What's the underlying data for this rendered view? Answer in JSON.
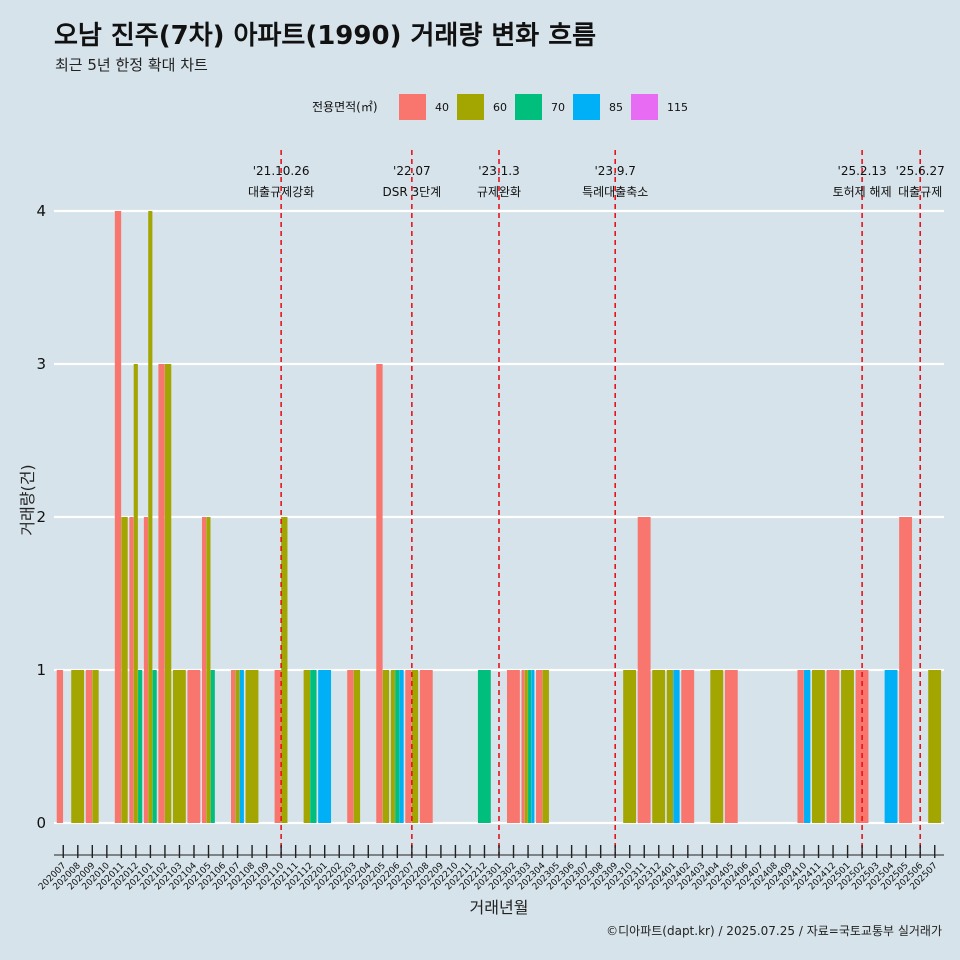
{
  "colors": {
    "background": "#d6e3ea",
    "gridline": "#ffffff",
    "event_line": "#e8141b",
    "series": {
      "40": "#f8766d",
      "60": "#a3a500",
      "70": "#00bf7d",
      "85": "#00b0f6",
      "115": "#e76bf3"
    }
  },
  "chart_data": {
    "type": "bar",
    "title": "오남 진주(7차) 아파트(1990) 거래량 변화 흐름",
    "subtitle": "최근 5년 한정 확대 차트",
    "xlabel": "거래년월",
    "ylabel": "거래량(건)",
    "ylim": [
      0,
      4
    ],
    "yticks": [
      0,
      1,
      2,
      3,
      4
    ],
    "grid": true,
    "legend": {
      "title": "전용면적(㎡)",
      "position": "top",
      "entries": [
        "40",
        "60",
        "70",
        "85",
        "115"
      ]
    },
    "categories": [
      "202007",
      "202008",
      "202009",
      "202010",
      "202011",
      "202012",
      "202101",
      "202102",
      "202103",
      "202104",
      "202105",
      "202106",
      "202107",
      "202108",
      "202109",
      "202110",
      "202111",
      "202112",
      "202201",
      "202202",
      "202203",
      "202204",
      "202205",
      "202206",
      "202207",
      "202208",
      "202209",
      "202210",
      "202211",
      "202212",
      "202301",
      "202302",
      "202303",
      "202304",
      "202305",
      "202306",
      "202307",
      "202308",
      "202309",
      "202310",
      "202311",
      "202312",
      "202401",
      "202402",
      "202403",
      "202404",
      "202405",
      "202406",
      "202407",
      "202408",
      "202409",
      "202410",
      "202411",
      "202412",
      "202501",
      "202502",
      "202503",
      "202504",
      "202505",
      "202506",
      "202507"
    ],
    "bars": [
      {
        "month": "202007",
        "values": {
          "40": 1,
          "60": 0
        }
      },
      {
        "month": "202008",
        "values": {
          "60": 1
        }
      },
      {
        "month": "202009",
        "values": {
          "40": 1,
          "60": 1
        }
      },
      {
        "month": "202011",
        "values": {
          "40": 4,
          "60": 2
        }
      },
      {
        "month": "202012",
        "values": {
          "40": 2,
          "60": 3,
          "70": 1
        }
      },
      {
        "month": "202101",
        "values": {
          "40": 2,
          "60": 4,
          "70": 1
        }
      },
      {
        "month": "202102",
        "values": {
          "40": 3,
          "60": 3
        }
      },
      {
        "month": "202103",
        "values": {
          "60": 1
        }
      },
      {
        "month": "202104",
        "values": {
          "40": 1
        }
      },
      {
        "month": "202105",
        "values": {
          "40": 2,
          "60": 2,
          "70": 1
        }
      },
      {
        "month": "202107",
        "values": {
          "40": 1,
          "60": 1,
          "85": 1
        }
      },
      {
        "month": "202108",
        "values": {
          "60": 1
        }
      },
      {
        "month": "202110",
        "values": {
          "40": 1,
          "60": 2
        }
      },
      {
        "month": "202112",
        "values": {
          "60": 1,
          "70": 1
        }
      },
      {
        "month": "202201",
        "values": {
          "85": 1
        }
      },
      {
        "month": "202203",
        "values": {
          "40": 1,
          "60": 1
        }
      },
      {
        "month": "202205",
        "values": {
          "40": 3,
          "60": 1
        }
      },
      {
        "month": "202206",
        "values": {
          "60": 1,
          "70": 1,
          "85": 1
        }
      },
      {
        "month": "202207",
        "values": {
          "40": 1,
          "60": 1
        }
      },
      {
        "month": "202208",
        "values": {
          "40": 1
        }
      },
      {
        "month": "202212",
        "values": {
          "70": 1
        }
      },
      {
        "month": "202302",
        "values": {
          "40": 1
        }
      },
      {
        "month": "202303",
        "values": {
          "40": 1,
          "60": 1,
          "70": 1,
          "85": 1
        }
      },
      {
        "month": "202304",
        "values": {
          "40": 1,
          "60": 1
        }
      },
      {
        "month": "202310",
        "values": {
          "60": 1
        }
      },
      {
        "month": "202311",
        "values": {
          "40": 2
        }
      },
      {
        "month": "202312",
        "values": {
          "60": 1
        }
      },
      {
        "month": "202401",
        "values": {
          "60": 1,
          "85": 1
        }
      },
      {
        "month": "202402",
        "values": {
          "40": 1
        }
      },
      {
        "month": "202404",
        "values": {
          "60": 1
        }
      },
      {
        "month": "202405",
        "values": {
          "40": 1
        }
      },
      {
        "month": "202410",
        "values": {
          "40": 1,
          "85": 1
        }
      },
      {
        "month": "202411",
        "values": {
          "60": 1
        }
      },
      {
        "month": "202412",
        "values": {
          "40": 1
        }
      },
      {
        "month": "202501",
        "values": {
          "60": 1
        }
      },
      {
        "month": "202502",
        "values": {
          "40": 1
        }
      },
      {
        "month": "202504",
        "values": {
          "85": 1
        }
      },
      {
        "month": "202505",
        "values": {
          "40": 2
        }
      },
      {
        "month": "202507",
        "values": {
          "60": 1
        }
      }
    ],
    "annotations": [
      {
        "x": "202110",
        "date": "'21.10.26",
        "label": "대출규제강화"
      },
      {
        "x": "202207",
        "date": "'22.07",
        "label": "DSR 3단계"
      },
      {
        "x": "202301",
        "date": "'23.1.3",
        "label": "규제완화"
      },
      {
        "x": "202309",
        "date": "'23.9.7",
        "label": "특례대출축소"
      },
      {
        "x": "202502",
        "date": "'25.2.13",
        "label": "토허제 해제"
      },
      {
        "x": "202506",
        "date": "'25.6.27",
        "label": "대출규제"
      }
    ],
    "caption": "©디아파트(dapt.kr) / 2025.07.25 / 자료=국토교통부 실거래가"
  }
}
